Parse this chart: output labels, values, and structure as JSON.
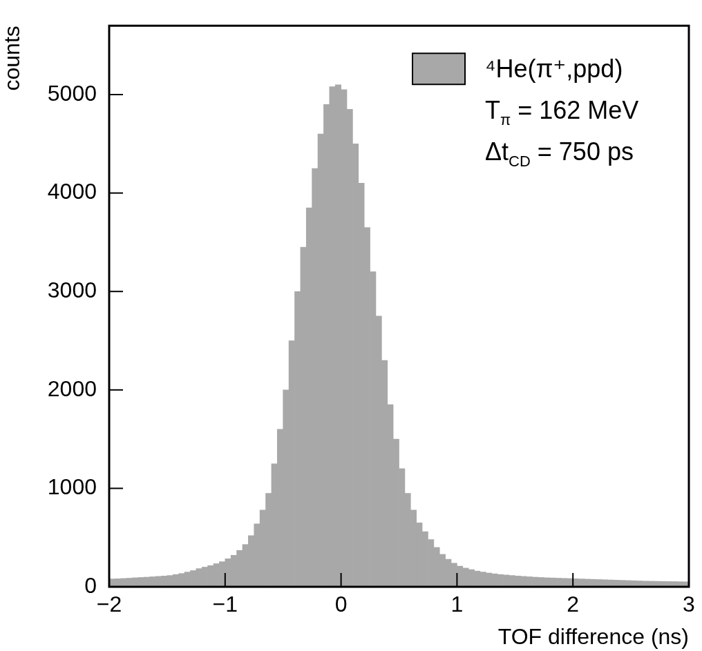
{
  "chart_data": {
    "type": "histogram",
    "xlabel": "TOF difference (ns)",
    "ylabel": "counts",
    "bins": [
      -2,
      -1.95,
      -1.9,
      -1.85,
      -1.8,
      -1.75,
      -1.7,
      -1.65,
      -1.6,
      -1.55,
      -1.5,
      -1.45,
      -1.4,
      -1.35,
      -1.3,
      -1.25,
      -1.2,
      -1.15,
      -1.1,
      -1.05,
      -1,
      -0.95,
      -0.9,
      -0.85,
      -0.8,
      -0.75,
      -0.7,
      -0.65,
      -0.6,
      -0.55,
      -0.5,
      -0.45,
      -0.4,
      -0.35,
      -0.3,
      -0.25,
      -0.2,
      -0.15,
      -0.1,
      -0.05,
      0,
      0.05,
      0.1,
      0.15,
      0.2,
      0.25,
      0.3,
      0.35,
      0.4,
      0.45,
      0.5,
      0.55,
      0.6,
      0.65,
      0.7,
      0.75,
      0.8,
      0.85,
      0.9,
      0.95,
      1,
      1.05,
      1.1,
      1.15,
      1.2,
      1.25,
      1.3,
      1.35,
      1.4,
      1.45,
      1.5,
      1.55,
      1.6,
      1.65,
      1.7,
      1.75,
      1.8,
      1.85,
      1.9,
      1.95,
      2,
      2.05,
      2.1,
      2.15,
      2.2,
      2.25,
      2.3,
      2.35,
      2.4,
      2.45,
      2.5,
      2.55,
      2.6,
      2.65,
      2.7,
      2.75,
      2.8,
      2.85,
      2.9,
      2.95,
      3
    ],
    "series": [
      {
        "name": "⁴He(π⁺,ppd)",
        "color": "#a8a8a8",
        "values": [
          80,
          82,
          85,
          88,
          92,
          95,
          98,
          102,
          106,
          110,
          115,
          125,
          135,
          150,
          165,
          185,
          200,
          215,
          235,
          255,
          285,
          320,
          370,
          430,
          520,
          640,
          780,
          950,
          1250,
          1600,
          2000,
          2500,
          3000,
          3450,
          3850,
          4250,
          4600,
          4900,
          5080,
          5100,
          5050,
          4850,
          4500,
          4100,
          3650,
          3200,
          2750,
          2300,
          1850,
          1500,
          1200,
          950,
          780,
          650,
          560,
          480,
          400,
          330,
          280,
          240,
          210,
          190,
          175,
          160,
          150,
          140,
          132,
          125,
          120,
          115,
          110,
          106,
          102,
          98,
          95,
          92,
          90,
          88,
          86,
          84,
          82,
          80,
          78,
          76,
          74,
          72,
          70,
          68,
          66,
          64,
          62,
          60,
          58,
          57,
          56,
          55,
          54,
          53,
          52,
          51
        ]
      }
    ],
    "annotations": [
      "T$_{π}$ = 162 MeV",
      "Δt$_{CD}$ = 750 ps"
    ],
    "xlim": [
      -2,
      3
    ],
    "xticks": [
      -2,
      -1,
      0,
      1,
      2,
      3
    ],
    "ylim": [
      0,
      5700
    ],
    "yticks": [
      0,
      1000,
      2000,
      3000,
      4000,
      5000
    ],
    "legend": "top right",
    "grid": false
  }
}
